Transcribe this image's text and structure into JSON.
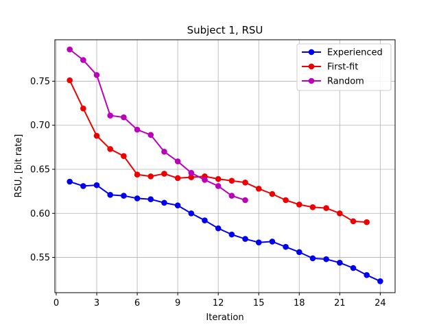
{
  "chart_data": {
    "type": "line",
    "title": "Subject 1, RSU",
    "xlabel": "Iteration",
    "ylabel": "RSU, [bit rate]",
    "xlim": [
      -0.1,
      25.1
    ],
    "ylim": [
      0.51,
      0.797
    ],
    "xticks": [
      0,
      3,
      6,
      9,
      12,
      15,
      18,
      21,
      24
    ],
    "yticks": [
      0.55,
      0.6,
      0.65,
      0.7,
      0.75
    ],
    "grid": true,
    "legend_position": "top-right",
    "series": [
      {
        "name": "Experienced",
        "color": "#0000ee",
        "x": [
          1,
          2,
          3,
          4,
          5,
          6,
          7,
          8,
          9,
          10,
          11,
          12,
          13,
          14,
          15,
          16,
          17,
          18,
          19,
          20,
          21,
          22,
          23,
          24
        ],
        "y": [
          0.636,
          0.631,
          0.632,
          0.621,
          0.62,
          0.617,
          0.616,
          0.612,
          0.609,
          0.6,
          0.592,
          0.583,
          0.576,
          0.571,
          0.567,
          0.568,
          0.562,
          0.556,
          0.549,
          0.548,
          0.544,
          0.538,
          0.53,
          0.523
        ]
      },
      {
        "name": "First-fit",
        "color": "#ee0000",
        "x": [
          1,
          2,
          3,
          4,
          5,
          6,
          7,
          8,
          9,
          10,
          11,
          12,
          13,
          14,
          15,
          16,
          17,
          18,
          19,
          20,
          21,
          22,
          23
        ],
        "y": [
          0.751,
          0.719,
          0.688,
          0.673,
          0.665,
          0.644,
          0.642,
          0.645,
          0.64,
          0.641,
          0.642,
          0.639,
          0.637,
          0.635,
          0.628,
          0.622,
          0.615,
          0.61,
          0.607,
          0.606,
          0.6,
          0.591,
          0.59
        ]
      },
      {
        "name": "Random",
        "color": "#bb00bb",
        "x": [
          1,
          2,
          3,
          4,
          5,
          6,
          7,
          8,
          9,
          10,
          11,
          12,
          13,
          14
        ],
        "y": [
          0.786,
          0.774,
          0.757,
          0.711,
          0.709,
          0.695,
          0.689,
          0.67,
          0.659,
          0.646,
          0.638,
          0.631,
          0.62,
          0.615
        ]
      }
    ]
  }
}
